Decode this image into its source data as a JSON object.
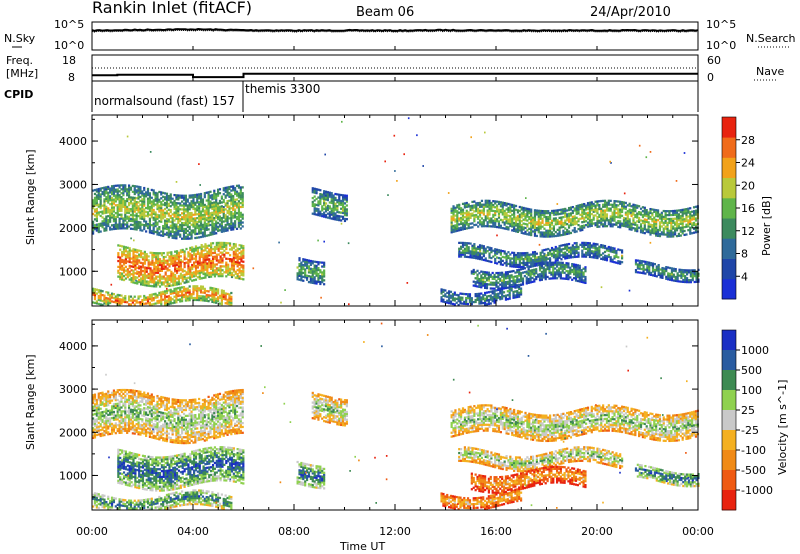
{
  "header": {
    "station": "Rankin Inlet (fitACF)",
    "beam": "Beam 06",
    "date": "24/Apr/2010"
  },
  "summary": {
    "left_label": "N.Sky",
    "left_ticks": [
      "10^5",
      "10^0"
    ],
    "right_ticks": [
      "10^5",
      "10^0"
    ],
    "right_label": "N.Search",
    "freq_label_1": "Freq.",
    "freq_label_2": "[MHz]",
    "freq_ticks": [
      "18",
      "8"
    ],
    "nave_ticks": [
      "60",
      "0"
    ],
    "nave_label": "Nave",
    "cpid_label": "CPID",
    "cpid_1": "normalsound (fast) 157",
    "cpid_2": "themis 3300"
  },
  "colors": {
    "power": [
      "#1a2fd6",
      "#1f46a8",
      "#2f6a9a",
      "#3c8a5e",
      "#5fb54a",
      "#b9c93a",
      "#f2a21a",
      "#f06b1a",
      "#e8230f"
    ],
    "velocity": [
      "#e8230f",
      "#ef5a12",
      "#f08a16",
      "#f4b020",
      "#c9c9c9",
      "#8fd14f",
      "#3d8a52",
      "#2a5ca0",
      "#1a2fc4"
    ]
  },
  "chart_data": [
    {
      "type": "line",
      "title": "N.Sky / N.Search",
      "x": [
        "00:00",
        "02:00",
        "04:00",
        "06:00",
        "08:00",
        "10:00",
        "12:00",
        "14:00",
        "16:00",
        "18:00",
        "20:00",
        "22:00",
        "00:00"
      ],
      "series": [
        {
          "name": "N.Sky",
          "values": [
            3000,
            4000,
            5000,
            3500,
            3000,
            3200,
            3000,
            3500,
            3300,
            3000,
            3200,
            3100,
            3000
          ]
        }
      ],
      "ylim": [
        1,
        100000
      ],
      "yscale": "log"
    },
    {
      "type": "line",
      "title": "Freq. / Nave",
      "series": [
        {
          "name": "Freq.",
          "x": [
            "00:00",
            "01:00",
            "04:00",
            "06:00",
            "24:00"
          ],
          "values": [
            10.2,
            10.4,
            9.5,
            10.8,
            10.8
          ]
        },
        {
          "name": "Nave",
          "x": [
            "00:00",
            "06:00",
            "24:00"
          ],
          "values": [
            30,
            30,
            30
          ]
        }
      ],
      "freq_ylim": [
        8,
        18
      ],
      "nave_ylim": [
        0,
        60
      ]
    },
    {
      "type": "heatmap",
      "title": "Power",
      "xlabel": "",
      "ylabel": "Slant Range [km]",
      "x_ticks": [
        "00:00",
        "04:00",
        "08:00",
        "12:00",
        "16:00",
        "20:00",
        "00:00"
      ],
      "y_ticks": [
        "1000",
        "2000",
        "3000",
        "4000"
      ],
      "ylim": [
        200,
        4600
      ],
      "colorbar_label": "Power [dB]",
      "colorbar_ticks": [
        "4",
        "8",
        "12",
        "16",
        "20",
        "24",
        "28"
      ],
      "bands": [
        {
          "t0": 0.0,
          "t1": 6.0,
          "r0": 1850,
          "r1": 2850,
          "level": 0.45
        },
        {
          "t0": 1.0,
          "t1": 6.0,
          "r0": 750,
          "r1": 1550,
          "level": 0.7
        },
        {
          "t0": 0.0,
          "t1": 5.5,
          "r0": 200,
          "r1": 550,
          "level": 0.65
        },
        {
          "t0": 8.7,
          "t1": 10.1,
          "r0": 2250,
          "r1": 2850,
          "level": 0.35
        },
        {
          "t0": 8.1,
          "t1": 9.2,
          "r0": 800,
          "r1": 1300,
          "level": 0.35
        },
        {
          "t0": 14.2,
          "t1": 24.0,
          "r0": 1900,
          "r1": 2500,
          "level": 0.45
        },
        {
          "t0": 14.5,
          "t1": 21.0,
          "r0": 1200,
          "r1": 1550,
          "level": 0.3
        },
        {
          "t0": 15.0,
          "t1": 19.5,
          "r0": 700,
          "r1": 1100,
          "level": 0.3
        },
        {
          "t0": 13.8,
          "t1": 17.0,
          "r0": 300,
          "r1": 600,
          "level": 0.25
        },
        {
          "t0": 21.5,
          "t1": 24.0,
          "r0": 850,
          "r1": 1150,
          "level": 0.3
        }
      ]
    },
    {
      "type": "heatmap",
      "title": "Velocity",
      "xlabel": "Time UT",
      "ylabel": "Slant Range [km]",
      "x_ticks": [
        "00:00",
        "04:00",
        "08:00",
        "12:00",
        "16:00",
        "20:00",
        "00:00"
      ],
      "y_ticks": [
        "1000",
        "2000",
        "3000",
        "4000"
      ],
      "ylim": [
        200,
        4600
      ],
      "colorbar_label": "Velocity [m s^-1]",
      "colorbar_ticks": [
        "1000",
        "500",
        "100",
        "25",
        "-25",
        "-100",
        "-500",
        "-1000"
      ],
      "bands": [
        {
          "t0": 0.0,
          "t1": 6.0,
          "r0": 1850,
          "r1": 2850,
          "level": 0.48
        },
        {
          "t0": 1.0,
          "t1": 6.0,
          "r0": 750,
          "r1": 1550,
          "level": 0.7
        },
        {
          "t0": 0.0,
          "t1": 5.5,
          "r0": 200,
          "r1": 550,
          "level": 0.62
        },
        {
          "t0": 8.7,
          "t1": 10.1,
          "r0": 2250,
          "r1": 2850,
          "level": 0.48
        },
        {
          "t0": 8.1,
          "t1": 9.2,
          "r0": 800,
          "r1": 1300,
          "level": 0.7
        },
        {
          "t0": 14.2,
          "t1": 24.0,
          "r0": 1900,
          "r1": 2500,
          "level": 0.48
        },
        {
          "t0": 14.5,
          "t1": 21.0,
          "r0": 1200,
          "r1": 1550,
          "level": 0.47
        },
        {
          "t0": 15.0,
          "t1": 19.5,
          "r0": 700,
          "r1": 1100,
          "level": 0.2
        },
        {
          "t0": 13.8,
          "t1": 17.0,
          "r0": 300,
          "r1": 600,
          "level": 0.25
        },
        {
          "t0": 21.5,
          "t1": 24.0,
          "r0": 850,
          "r1": 1150,
          "level": 0.68
        }
      ]
    }
  ]
}
